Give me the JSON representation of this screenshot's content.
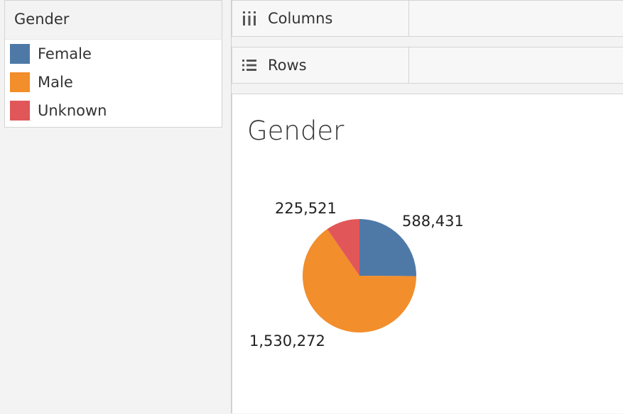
{
  "legend": {
    "title": "Gender",
    "items": [
      {
        "label": "Female",
        "color": "#4e79a7"
      },
      {
        "label": "Male",
        "color": "#f28e2b"
      },
      {
        "label": "Unknown",
        "color": "#e15759"
      }
    ]
  },
  "shelves": {
    "columns_label": "Columns",
    "columns_icon": "columns-icon",
    "rows_label": "Rows",
    "rows_icon": "rows-icon"
  },
  "sheet": {
    "title": "Gender"
  },
  "chart_data": {
    "type": "pie",
    "title": "Gender",
    "categories": [
      "Female",
      "Male",
      "Unknown"
    ],
    "values": [
      588431,
      1530272,
      225521
    ],
    "labels": [
      "588,431",
      "1,530,272",
      "225,521"
    ],
    "colors": [
      "#4e79a7",
      "#f28e2b",
      "#e15759"
    ],
    "legend": "top-left"
  }
}
